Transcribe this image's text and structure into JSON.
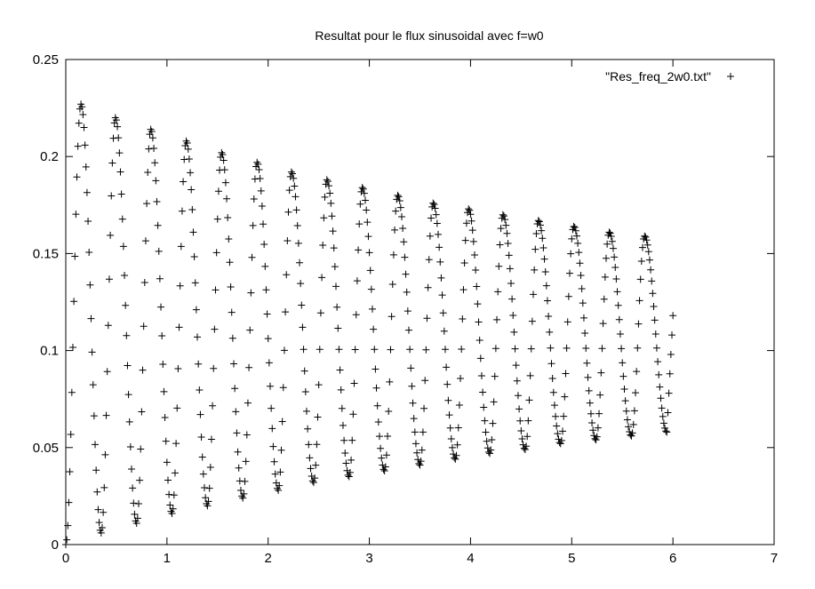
{
  "chart_data": {
    "type": "scatter",
    "title": "Resultat pour le flux sinusoidal avec f=w0",
    "xlabel": "",
    "ylabel": "",
    "xlim": [
      0,
      7
    ],
    "ylim": [
      0,
      0.25
    ],
    "xticks": [
      "0",
      "1",
      "2",
      "3",
      "4",
      "5",
      "6",
      "7"
    ],
    "yticks": [
      "0",
      "0.05",
      "0.1",
      "0.15",
      "0.2",
      "0.25"
    ],
    "grid": false,
    "legend_position": "top-right",
    "marker": "+",
    "series": [
      {
        "name": "\"Res_freq_2w0.txt\"",
        "x_range": [
          0,
          6
        ],
        "x_step": 0.01,
        "peaks": [
          {
            "x": 0.15,
            "y": 0.227
          },
          {
            "x": 0.49,
            "y": 0.22
          },
          {
            "x": 0.84,
            "y": 0.214
          },
          {
            "x": 1.19,
            "y": 0.208
          },
          {
            "x": 1.54,
            "y": 0.202
          },
          {
            "x": 1.89,
            "y": 0.197
          },
          {
            "x": 2.23,
            "y": 0.192
          },
          {
            "x": 2.58,
            "y": 0.188
          },
          {
            "x": 2.93,
            "y": 0.184
          },
          {
            "x": 3.28,
            "y": 0.18
          },
          {
            "x": 3.63,
            "y": 0.176
          },
          {
            "x": 3.98,
            "y": 0.173
          },
          {
            "x": 4.32,
            "y": 0.17
          },
          {
            "x": 4.67,
            "y": 0.167
          },
          {
            "x": 5.02,
            "y": 0.164
          },
          {
            "x": 5.37,
            "y": 0.161
          },
          {
            "x": 5.72,
            "y": 0.159
          }
        ],
        "troughs": [
          {
            "x": 0.0,
            "y": 0.0
          },
          {
            "x": 0.35,
            "y": 0.006
          },
          {
            "x": 0.7,
            "y": 0.011
          },
          {
            "x": 1.05,
            "y": 0.016
          },
          {
            "x": 1.4,
            "y": 0.02
          },
          {
            "x": 1.75,
            "y": 0.024
          },
          {
            "x": 2.1,
            "y": 0.028
          },
          {
            "x": 2.45,
            "y": 0.032
          },
          {
            "x": 2.8,
            "y": 0.035
          },
          {
            "x": 3.15,
            "y": 0.038
          },
          {
            "x": 3.5,
            "y": 0.041
          },
          {
            "x": 3.85,
            "y": 0.044
          },
          {
            "x": 4.19,
            "y": 0.047
          },
          {
            "x": 4.54,
            "y": 0.049
          },
          {
            "x": 4.89,
            "y": 0.052
          },
          {
            "x": 5.24,
            "y": 0.054
          },
          {
            "x": 5.59,
            "y": 0.056
          },
          {
            "x": 5.94,
            "y": 0.058
          }
        ],
        "last_point": {
          "x": 6.0,
          "y": 0.118
        }
      }
    ]
  },
  "legend": {
    "label": "\"Res_freq_2w0.txt\"",
    "marker": "+"
  },
  "colors": {
    "points": "#000000",
    "axes": "#000000",
    "background": "#ffffff"
  }
}
